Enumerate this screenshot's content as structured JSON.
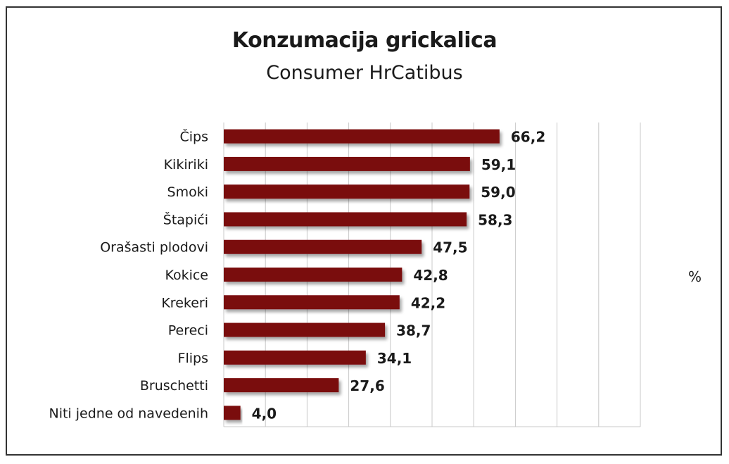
{
  "chart_data": {
    "type": "bar",
    "orientation": "horizontal",
    "title": "Konzumacija grickalica",
    "subtitle": "Consumer HrCatibus",
    "unit": "%",
    "categories": [
      "Čips",
      "Kikiriki",
      "Smoki",
      "Štapići",
      "Orašasti plodovi",
      "Kokice",
      "Krekeri",
      "Pereci",
      "Flips",
      "Bruschetti",
      "Niti jedne od navedenih"
    ],
    "values": [
      66.2,
      59.1,
      59.0,
      58.3,
      47.5,
      42.8,
      42.2,
      38.7,
      34.1,
      27.6,
      4.0
    ],
    "value_labels": [
      "66,2",
      "59,1",
      "59,0",
      "58,3",
      "47,5",
      "42,8",
      "42,2",
      "38,7",
      "34,1",
      "27,6",
      "4,0"
    ],
    "xlim": [
      0,
      100
    ],
    "grid": true,
    "bar_color": "#7a0a10"
  }
}
